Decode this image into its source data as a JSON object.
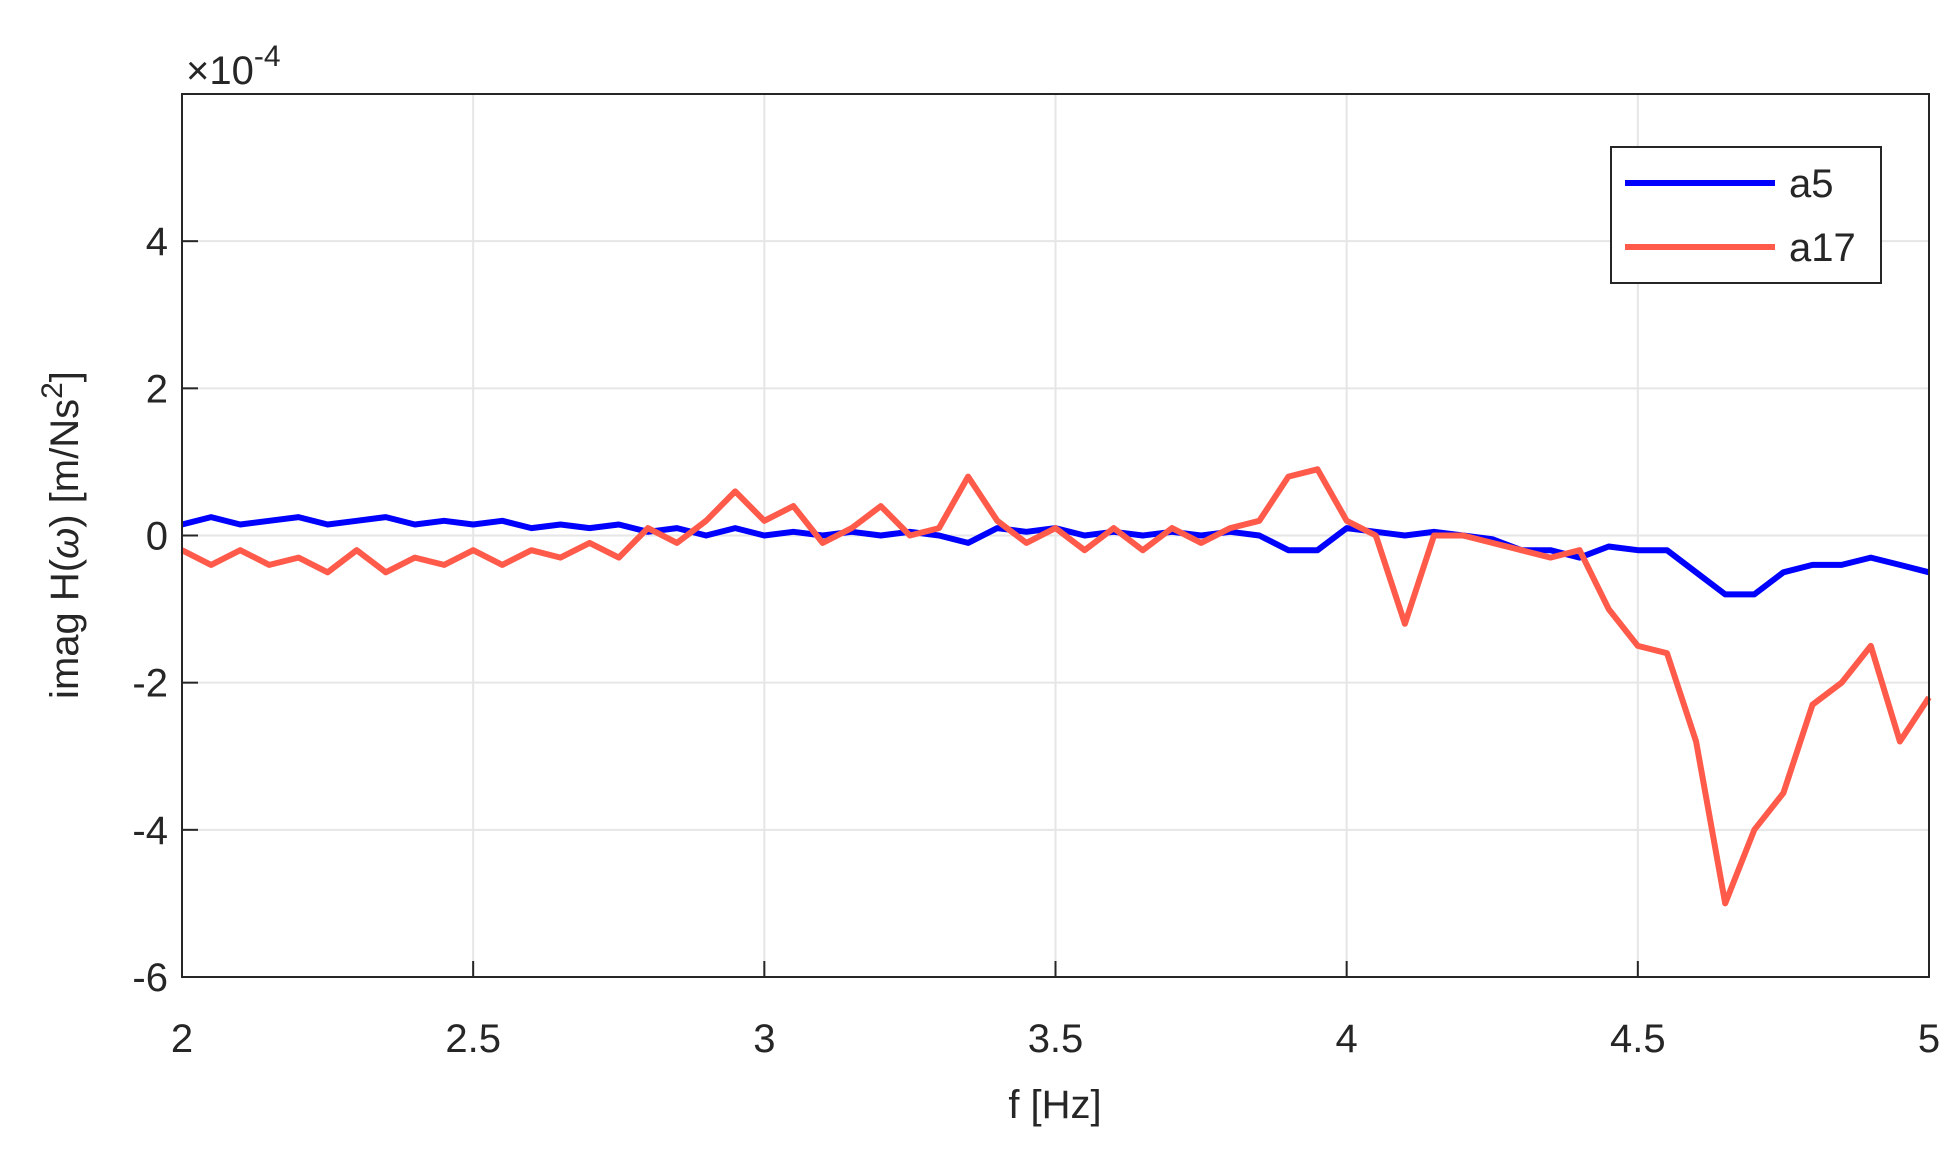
{
  "chart_data": {
    "type": "line",
    "xlabel": "f [Hz]",
    "ylabel_parts": [
      "imag H(",
      "ω",
      ") [m/Ns",
      "2",
      "]"
    ],
    "y_multiplier": [
      "×10",
      "-4"
    ],
    "x": [
      2.0,
      2.05,
      2.1,
      2.15,
      2.2,
      2.25,
      2.3,
      2.35,
      2.4,
      2.45,
      2.5,
      2.55,
      2.6,
      2.65,
      2.7,
      2.75,
      2.8,
      2.85,
      2.9,
      2.95,
      3.0,
      3.05,
      3.1,
      3.15,
      3.2,
      3.25,
      3.3,
      3.35,
      3.4,
      3.45,
      3.5,
      3.55,
      3.6,
      3.65,
      3.7,
      3.75,
      3.8,
      3.85,
      3.9,
      3.95,
      4.0,
      4.05,
      4.1,
      4.15,
      4.2,
      4.25,
      4.3,
      4.35,
      4.4,
      4.45,
      4.5,
      4.55,
      4.6,
      4.65,
      4.7,
      4.75,
      4.8,
      4.85,
      4.9,
      4.95,
      5.0
    ],
    "series": [
      {
        "name": "a5",
        "color": "#0000ff",
        "values": [
          0.15,
          0.25,
          0.15,
          0.2,
          0.25,
          0.15,
          0.2,
          0.25,
          0.15,
          0.2,
          0.15,
          0.2,
          0.1,
          0.15,
          0.1,
          0.15,
          0.05,
          0.1,
          0.0,
          0.1,
          0.0,
          0.05,
          0.0,
          0.05,
          0.0,
          0.05,
          0.0,
          -0.1,
          0.1,
          0.05,
          0.1,
          0.0,
          0.05,
          0.0,
          0.05,
          0.0,
          0.05,
          0.0,
          -0.2,
          -0.2,
          0.1,
          0.05,
          0.0,
          0.05,
          0.0,
          -0.05,
          -0.2,
          -0.2,
          -0.3,
          -0.15,
          -0.2,
          -0.2,
          -0.5,
          -0.8,
          -0.8,
          -0.5,
          -0.4,
          -0.4,
          -0.3,
          -0.4,
          -0.5
        ]
      },
      {
        "name": "a17",
        "color": "#ff5a4a",
        "values": [
          -0.2,
          -0.4,
          -0.2,
          -0.4,
          -0.3,
          -0.5,
          -0.2,
          -0.5,
          -0.3,
          -0.4,
          -0.2,
          -0.4,
          -0.2,
          -0.3,
          -0.1,
          -0.3,
          0.1,
          -0.1,
          0.2,
          0.6,
          0.2,
          0.4,
          -0.1,
          0.1,
          0.4,
          0.0,
          0.1,
          0.8,
          0.2,
          -0.1,
          0.1,
          -0.2,
          0.1,
          -0.2,
          0.1,
          -0.1,
          0.1,
          0.2,
          0.8,
          0.9,
          0.2,
          0.0,
          -1.2,
          0.0,
          0.0,
          -0.1,
          -0.2,
          -0.3,
          -0.2,
          -1.0,
          -1.5,
          -1.6,
          -2.8,
          -5.0,
          -4.0,
          -3.5,
          -2.3,
          -2.0,
          -1.5,
          -2.8,
          -2.2
        ]
      }
    ],
    "xlim": [
      2,
      5
    ],
    "xticks": [
      2,
      2.5,
      3,
      3.5,
      4,
      4.5,
      5
    ],
    "ylim": [
      -6,
      6
    ],
    "yticks": [
      -6,
      -4,
      -2,
      0,
      2,
      4
    ],
    "grid": true,
    "legend": "upper-right"
  }
}
